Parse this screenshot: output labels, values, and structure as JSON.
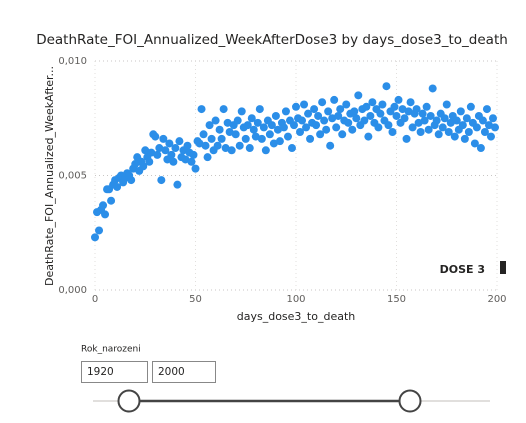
{
  "chart_data": {
    "type": "scatter",
    "title": "DeathRate_FOI_Annualized_WeekAfterDose3 by days_dose3_to_death",
    "x_label": "days_dose3_to_death",
    "y_label": "DeathRate_FOI_Annualized_WeekAfter...",
    "annotation": "DOSE 3",
    "color": "#2b8ee8",
    "grid": true,
    "xlim": [
      0,
      200
    ],
    "xticks": [
      0,
      50,
      100,
      150,
      200
    ],
    "ylim": [
      0,
      0.01
    ],
    "yticks": [
      {
        "value": 0,
        "label": "0,000"
      },
      {
        "value": 0.005,
        "label": "0,005"
      },
      {
        "value": 0.01,
        "label": "0,010"
      }
    ],
    "x": [
      0,
      1,
      2,
      3,
      4,
      5,
      6,
      7,
      8,
      9,
      10,
      11,
      12,
      13,
      14,
      15,
      16,
      17,
      18,
      19,
      20,
      21,
      22,
      23,
      24,
      25,
      26,
      27,
      28,
      29,
      30,
      31,
      32,
      33,
      34,
      35,
      36,
      37,
      38,
      39,
      40,
      41,
      42,
      43,
      44,
      45,
      46,
      47,
      48,
      49,
      50,
      51,
      52,
      53,
      54,
      55,
      56,
      57,
      58,
      59,
      60,
      61,
      62,
      63,
      64,
      65,
      66,
      67,
      68,
      69,
      70,
      71,
      72,
      73,
      74,
      75,
      76,
      77,
      78,
      79,
      80,
      81,
      82,
      83,
      84,
      85,
      86,
      87,
      88,
      89,
      90,
      91,
      92,
      93,
      94,
      95,
      96,
      97,
      98,
      99,
      100,
      101,
      102,
      103,
      104,
      105,
      106,
      107,
      108,
      109,
      110,
      111,
      112,
      113,
      114,
      115,
      116,
      117,
      118,
      119,
      120,
      121,
      122,
      123,
      124,
      125,
      126,
      127,
      128,
      129,
      130,
      131,
      132,
      133,
      134,
      135,
      136,
      137,
      138,
      139,
      140,
      141,
      142,
      143,
      144,
      145,
      146,
      147,
      148,
      149,
      150,
      151,
      152,
      153,
      154,
      155,
      156,
      157,
      158,
      159,
      160,
      161,
      162,
      163,
      164,
      165,
      166,
      167,
      168,
      169,
      170,
      171,
      172,
      173,
      174,
      175,
      176,
      177,
      178,
      179,
      180,
      181,
      182,
      183,
      184,
      185,
      186,
      187,
      188,
      189,
      190,
      191,
      192,
      193,
      194,
      195,
      196,
      197,
      198,
      199
    ],
    "values": [
      0.0023,
      0.0034,
      0.0026,
      0.0035,
      0.0037,
      0.0033,
      0.0044,
      0.0044,
      0.0039,
      0.0046,
      0.0048,
      0.0045,
      0.0049,
      0.005,
      0.0047,
      0.0049,
      0.0051,
      0.005,
      0.0048,
      0.0053,
      0.0055,
      0.0058,
      0.0052,
      0.0056,
      0.0054,
      0.0061,
      0.0058,
      0.0056,
      0.006,
      0.0068,
      0.0067,
      0.0059,
      0.0062,
      0.0048,
      0.0066,
      0.0061,
      0.0057,
      0.0064,
      0.0059,
      0.0056,
      0.0062,
      0.0046,
      0.0065,
      0.0058,
      0.0061,
      0.0057,
      0.0063,
      0.006,
      0.0056,
      0.0059,
      0.0053,
      0.0065,
      0.0064,
      0.0079,
      0.0068,
      0.0063,
      0.0058,
      0.0072,
      0.0066,
      0.0061,
      0.0074,
      0.0063,
      0.007,
      0.0066,
      0.0079,
      0.0062,
      0.0073,
      0.0069,
      0.0061,
      0.0072,
      0.0068,
      0.0074,
      0.0063,
      0.0078,
      0.0071,
      0.0066,
      0.0072,
      0.0062,
      0.0075,
      0.007,
      0.0067,
      0.0073,
      0.0079,
      0.0066,
      0.0071,
      0.0061,
      0.0074,
      0.0068,
      0.0072,
      0.0064,
      0.0076,
      0.007,
      0.0065,
      0.0073,
      0.0071,
      0.0078,
      0.0067,
      0.0074,
      0.0062,
      0.0072,
      0.008,
      0.0075,
      0.0069,
      0.0074,
      0.0081,
      0.0071,
      0.0077,
      0.0066,
      0.0073,
      0.0079,
      0.0072,
      0.0076,
      0.0068,
      0.0082,
      0.0074,
      0.007,
      0.0078,
      0.0063,
      0.0075,
      0.0083,
      0.0071,
      0.0076,
      0.0079,
      0.0068,
      0.0074,
      0.0081,
      0.0073,
      0.0077,
      0.007,
      0.0078,
      0.0075,
      0.0085,
      0.0072,
      0.0079,
      0.0074,
      0.008,
      0.0067,
      0.0076,
      0.0082,
      0.0073,
      0.0079,
      0.0071,
      0.0077,
      0.0081,
      0.0074,
      0.0089,
      0.0072,
      0.0078,
      0.0069,
      0.008,
      0.0076,
      0.0083,
      0.0073,
      0.0079,
      0.0075,
      0.0066,
      0.0078,
      0.0082,
      0.0071,
      0.0077,
      0.0079,
      0.0073,
      0.0069,
      0.0077,
      0.0074,
      0.008,
      0.007,
      0.0076,
      0.0088,
      0.0072,
      0.0074,
      0.0068,
      0.0077,
      0.0071,
      0.0075,
      0.0081,
      0.0069,
      0.0073,
      0.0076,
      0.0067,
      0.0074,
      0.007,
      0.0078,
      0.0072,
      0.0066,
      0.0075,
      0.0069,
      0.008,
      0.0073,
      0.0064,
      0.0071,
      0.0076,
      0.0062,
      0.0074,
      0.0069,
      0.0079,
      0.0072,
      0.0067,
      0.0075,
      0.0071
    ]
  },
  "slicer": {
    "title": "Rok_narozeni",
    "min": "1920",
    "max": "2000"
  }
}
